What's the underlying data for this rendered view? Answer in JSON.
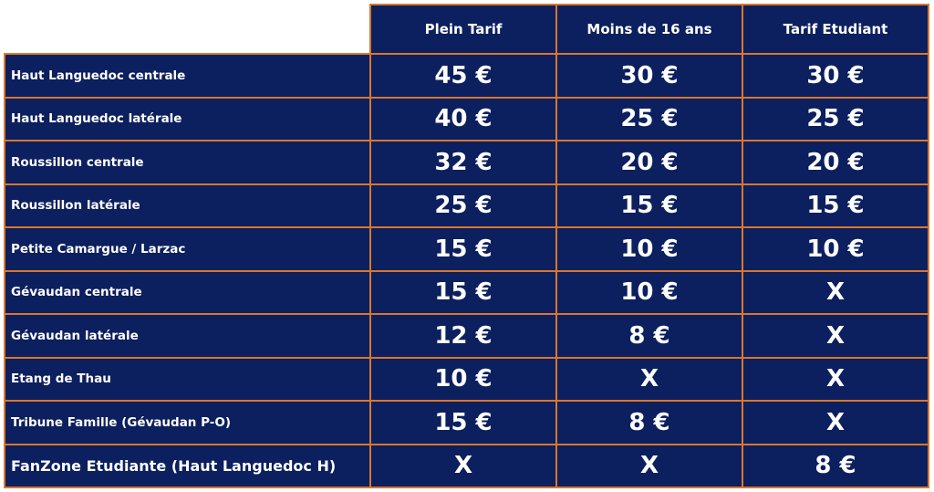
{
  "columns": [
    "Plein  Tarif",
    "Moins de 16 ans",
    "Tarif Etudiant"
  ],
  "rows": [
    {
      "label": "Haut Languedoc centrale",
      "values": [
        "45 €",
        "30 €",
        "30 €"
      ]
    },
    {
      "label": "Haut Languedoc latérale",
      "values": [
        "40 €",
        "25 €",
        "25 €"
      ]
    },
    {
      "label": "Roussillon centrale",
      "values": [
        "32 €",
        "20 €",
        "20 €"
      ]
    },
    {
      "label": "Roussillon latérale",
      "values": [
        "25 €",
        "15 €",
        "15 €"
      ]
    },
    {
      "label": "Petite Camargue / Larzac",
      "values": [
        "15 €",
        "10 €",
        "10 €"
      ]
    },
    {
      "label": "Gévaudan centrale",
      "values": [
        "15 €",
        "10 €",
        "X"
      ]
    },
    {
      "label": "Gévaudan latérale",
      "values": [
        "12 €",
        "8 €",
        "X"
      ]
    },
    {
      "label": "Etang de Thau",
      "values": [
        "10 €",
        "X",
        "X"
      ]
    },
    {
      "label": "Tribune Famille (Gévaudan P-O)",
      "values": [
        "15 €",
        "8 €",
        "X"
      ]
    },
    {
      "label": "FanZone Etudiante (Haut Languedoc H)",
      "values": [
        "X",
        "X",
        "8 €"
      ]
    }
  ],
  "colors": {
    "cell_background": "#0c1f5e",
    "border": "#d9772e",
    "text": "#ffffff"
  }
}
